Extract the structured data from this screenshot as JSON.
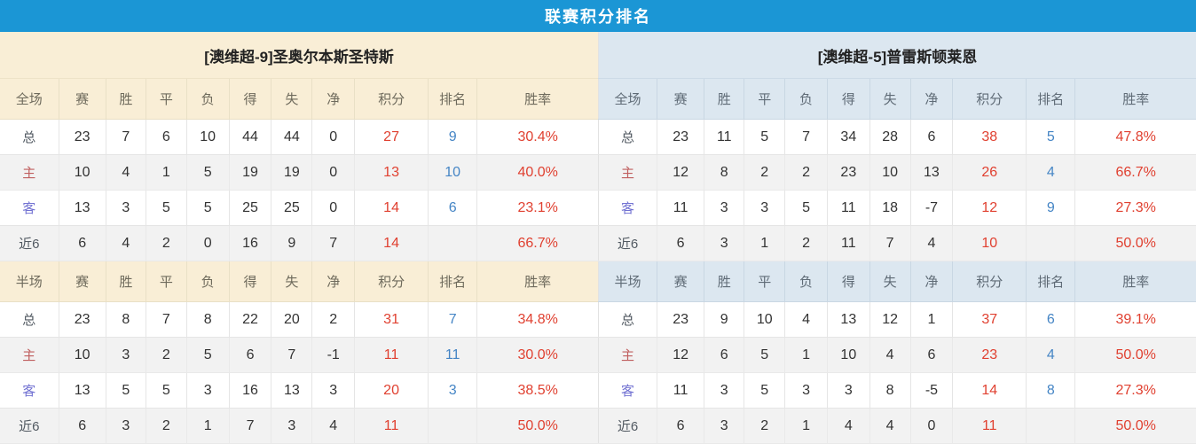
{
  "title": "联赛积分排名",
  "columns": [
    "赛",
    "胜",
    "平",
    "负",
    "得",
    "失",
    "净",
    "积分",
    "排名",
    "胜率"
  ],
  "colors": {
    "title_bar_bg": "#1b96d5",
    "title_text": "#ffffff",
    "left_header_bg": "#f9eed6",
    "right_header_bg": "#dce7f0",
    "row_alt_bg": "#f2f2f2",
    "points_red": "#e04030",
    "rank_blue": "#4585c5",
    "home_label_red": "#c05f5f",
    "away_label_blue": "#7272d2"
  },
  "tables": [
    {
      "team": "[澳维超-9]圣奥尔本斯圣特斯",
      "theme": "cream",
      "sections": [
        {
          "label": "全场",
          "rows": [
            {
              "label": "总",
              "type": "total",
              "values": [
                "23",
                "7",
                "6",
                "10",
                "44",
                "44",
                "0",
                "27",
                "9",
                "30.4%"
              ]
            },
            {
              "label": "主",
              "type": "home",
              "values": [
                "10",
                "4",
                "1",
                "5",
                "19",
                "19",
                "0",
                "13",
                "10",
                "40.0%"
              ]
            },
            {
              "label": "客",
              "type": "away",
              "values": [
                "13",
                "3",
                "5",
                "5",
                "25",
                "25",
                "0",
                "14",
                "6",
                "23.1%"
              ]
            },
            {
              "label": "近6",
              "type": "last6",
              "values": [
                "6",
                "4",
                "2",
                "0",
                "16",
                "9",
                "7",
                "14",
                "",
                "66.7%"
              ]
            }
          ]
        },
        {
          "label": "半场",
          "rows": [
            {
              "label": "总",
              "type": "total",
              "values": [
                "23",
                "8",
                "7",
                "8",
                "22",
                "20",
                "2",
                "31",
                "7",
                "34.8%"
              ]
            },
            {
              "label": "主",
              "type": "home",
              "values": [
                "10",
                "3",
                "2",
                "5",
                "6",
                "7",
                "-1",
                "11",
                "11",
                "30.0%"
              ]
            },
            {
              "label": "客",
              "type": "away",
              "values": [
                "13",
                "5",
                "5",
                "3",
                "16",
                "13",
                "3",
                "20",
                "3",
                "38.5%"
              ]
            },
            {
              "label": "近6",
              "type": "last6",
              "values": [
                "6",
                "3",
                "2",
                "1",
                "7",
                "3",
                "4",
                "11",
                "",
                "50.0%"
              ]
            }
          ]
        }
      ]
    },
    {
      "team": "[澳维超-5]普雷斯顿莱恩",
      "theme": "blue",
      "sections": [
        {
          "label": "全场",
          "rows": [
            {
              "label": "总",
              "type": "total",
              "values": [
                "23",
                "11",
                "5",
                "7",
                "34",
                "28",
                "6",
                "38",
                "5",
                "47.8%"
              ]
            },
            {
              "label": "主",
              "type": "home",
              "values": [
                "12",
                "8",
                "2",
                "2",
                "23",
                "10",
                "13",
                "26",
                "4",
                "66.7%"
              ]
            },
            {
              "label": "客",
              "type": "away",
              "values": [
                "11",
                "3",
                "3",
                "5",
                "11",
                "18",
                "-7",
                "12",
                "9",
                "27.3%"
              ]
            },
            {
              "label": "近6",
              "type": "last6",
              "values": [
                "6",
                "3",
                "1",
                "2",
                "11",
                "7",
                "4",
                "10",
                "",
                "50.0%"
              ]
            }
          ]
        },
        {
          "label": "半场",
          "rows": [
            {
              "label": "总",
              "type": "total",
              "values": [
                "23",
                "9",
                "10",
                "4",
                "13",
                "12",
                "1",
                "37",
                "6",
                "39.1%"
              ]
            },
            {
              "label": "主",
              "type": "home",
              "values": [
                "12",
                "6",
                "5",
                "1",
                "10",
                "4",
                "6",
                "23",
                "4",
                "50.0%"
              ]
            },
            {
              "label": "客",
              "type": "away",
              "values": [
                "11",
                "3",
                "5",
                "3",
                "3",
                "8",
                "-5",
                "14",
                "8",
                "27.3%"
              ]
            },
            {
              "label": "近6",
              "type": "last6",
              "values": [
                "6",
                "3",
                "2",
                "1",
                "4",
                "4",
                "0",
                "11",
                "",
                "50.0%"
              ]
            }
          ]
        }
      ]
    }
  ]
}
